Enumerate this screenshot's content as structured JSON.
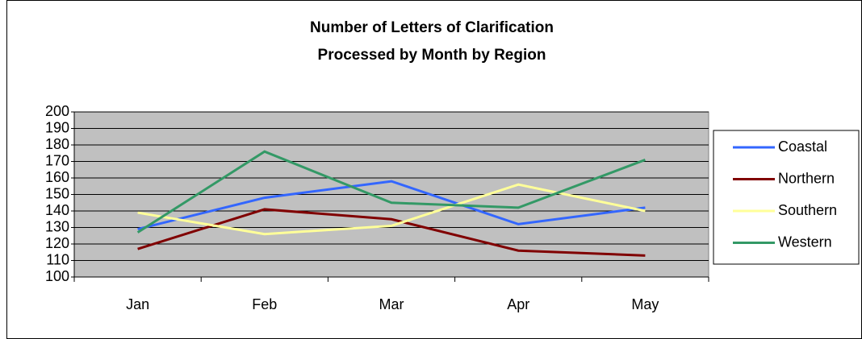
{
  "chart_data": {
    "type": "line",
    "title": [
      "Number of Letters of Clarification",
      "Processed by Month by Region"
    ],
    "categories": [
      "Jan",
      "Feb",
      "Mar",
      "Apr",
      "May"
    ],
    "series": [
      {
        "name": "Coastal",
        "color": "#3366ff",
        "values": [
          129,
          148,
          158,
          132,
          142
        ]
      },
      {
        "name": "Northern",
        "color": "#800000",
        "values": [
          117,
          141,
          135,
          116,
          113
        ]
      },
      {
        "name": "Southern",
        "color": "#ffff99",
        "values": [
          139,
          126,
          131,
          156,
          140
        ]
      },
      {
        "name": "Western",
        "color": "#339966",
        "values": [
          127,
          176,
          145,
          142,
          171
        ]
      }
    ],
    "ylim": [
      100,
      200
    ],
    "yticks": [
      100,
      110,
      120,
      130,
      140,
      150,
      160,
      170,
      180,
      190,
      200
    ],
    "grid": true,
    "legend": "right",
    "plot_background": "#c0c0c0"
  }
}
